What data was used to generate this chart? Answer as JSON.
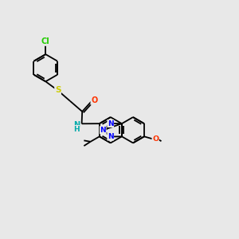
{
  "bg_color": "#e8e8e8",
  "bond_color": "#000000",
  "lw": 1.3,
  "atom_colors": {
    "Cl": "#22cc00",
    "S": "#cccc00",
    "O": "#ff3300",
    "N": "#0000ff",
    "NH": "#00aaaa",
    "C": "#000000"
  },
  "fs": 6.5,
  "figsize": [
    3.0,
    3.0
  ],
  "dpi": 100,
  "xlim": [
    0,
    10
  ],
  "ylim": [
    0,
    10
  ]
}
